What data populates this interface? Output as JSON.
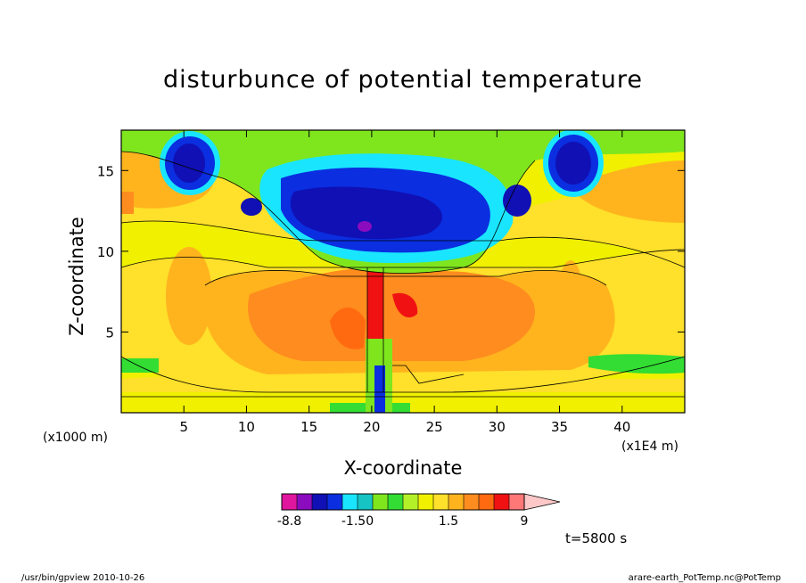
{
  "chart_data": {
    "type": "heatmap",
    "title": "disturbunce of potential temperature",
    "xlabel": "X-coordinate",
    "ylabel": "Z-coordinate",
    "x_unit": "(x1E4 m)",
    "y_unit": "(x1000 m)",
    "xlim": [
      0,
      45
    ],
    "ylim": [
      0,
      17.5
    ],
    "x_ticks": [
      5,
      10,
      15,
      20,
      25,
      30,
      35,
      40
    ],
    "y_ticks": [
      5,
      10,
      15
    ],
    "colorbar": {
      "levels": [
        -8.8,
        -7.5,
        -6,
        -4.5,
        -3,
        -1.5,
        -1,
        -0.5,
        0,
        0.5,
        1,
        1.5,
        3,
        4.5,
        6,
        7.5,
        9
      ],
      "colors": [
        "#e0169e",
        "#8a0cbe",
        "#1010b4",
        "#0a2ee0",
        "#19e5ff",
        "#16c4c4",
        "#7fe61e",
        "#33dd33",
        "#b4f028",
        "#f0f000",
        "#ffe02a",
        "#ffb41e",
        "#ff8c1e",
        "#ff6a10",
        "#f01212",
        "#ff7878",
        "#ffc8c8"
      ],
      "tick_labels": [
        "-8.8",
        "-1.50",
        "1.5",
        "9"
      ]
    },
    "time_label": "t=5800 s"
  },
  "footer": {
    "left": "/usr/bin/gpview   2010-10-26",
    "right": "arare-earth_PotTemp.nc@PotTemp"
  }
}
